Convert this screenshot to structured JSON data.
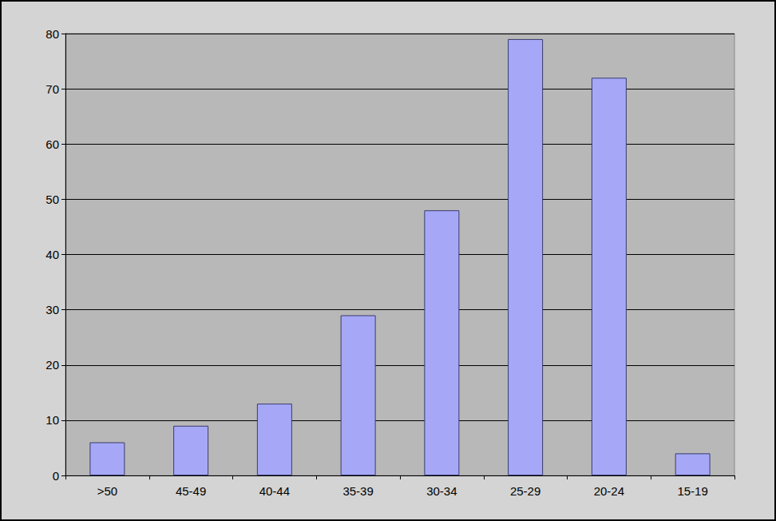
{
  "chart_data": {
    "type": "bar",
    "categories": [
      ">50",
      "45-49",
      "40-44",
      "35-39",
      "30-34",
      "25-29",
      "20-24",
      "15-19"
    ],
    "values": [
      6,
      9,
      13,
      29,
      48,
      79,
      72,
      4
    ],
    "color": "#a6a8f7",
    "ylim": [
      0,
      80
    ],
    "yticks": [
      0,
      10,
      20,
      30,
      40,
      50,
      60,
      70,
      80
    ],
    "grid": true
  }
}
